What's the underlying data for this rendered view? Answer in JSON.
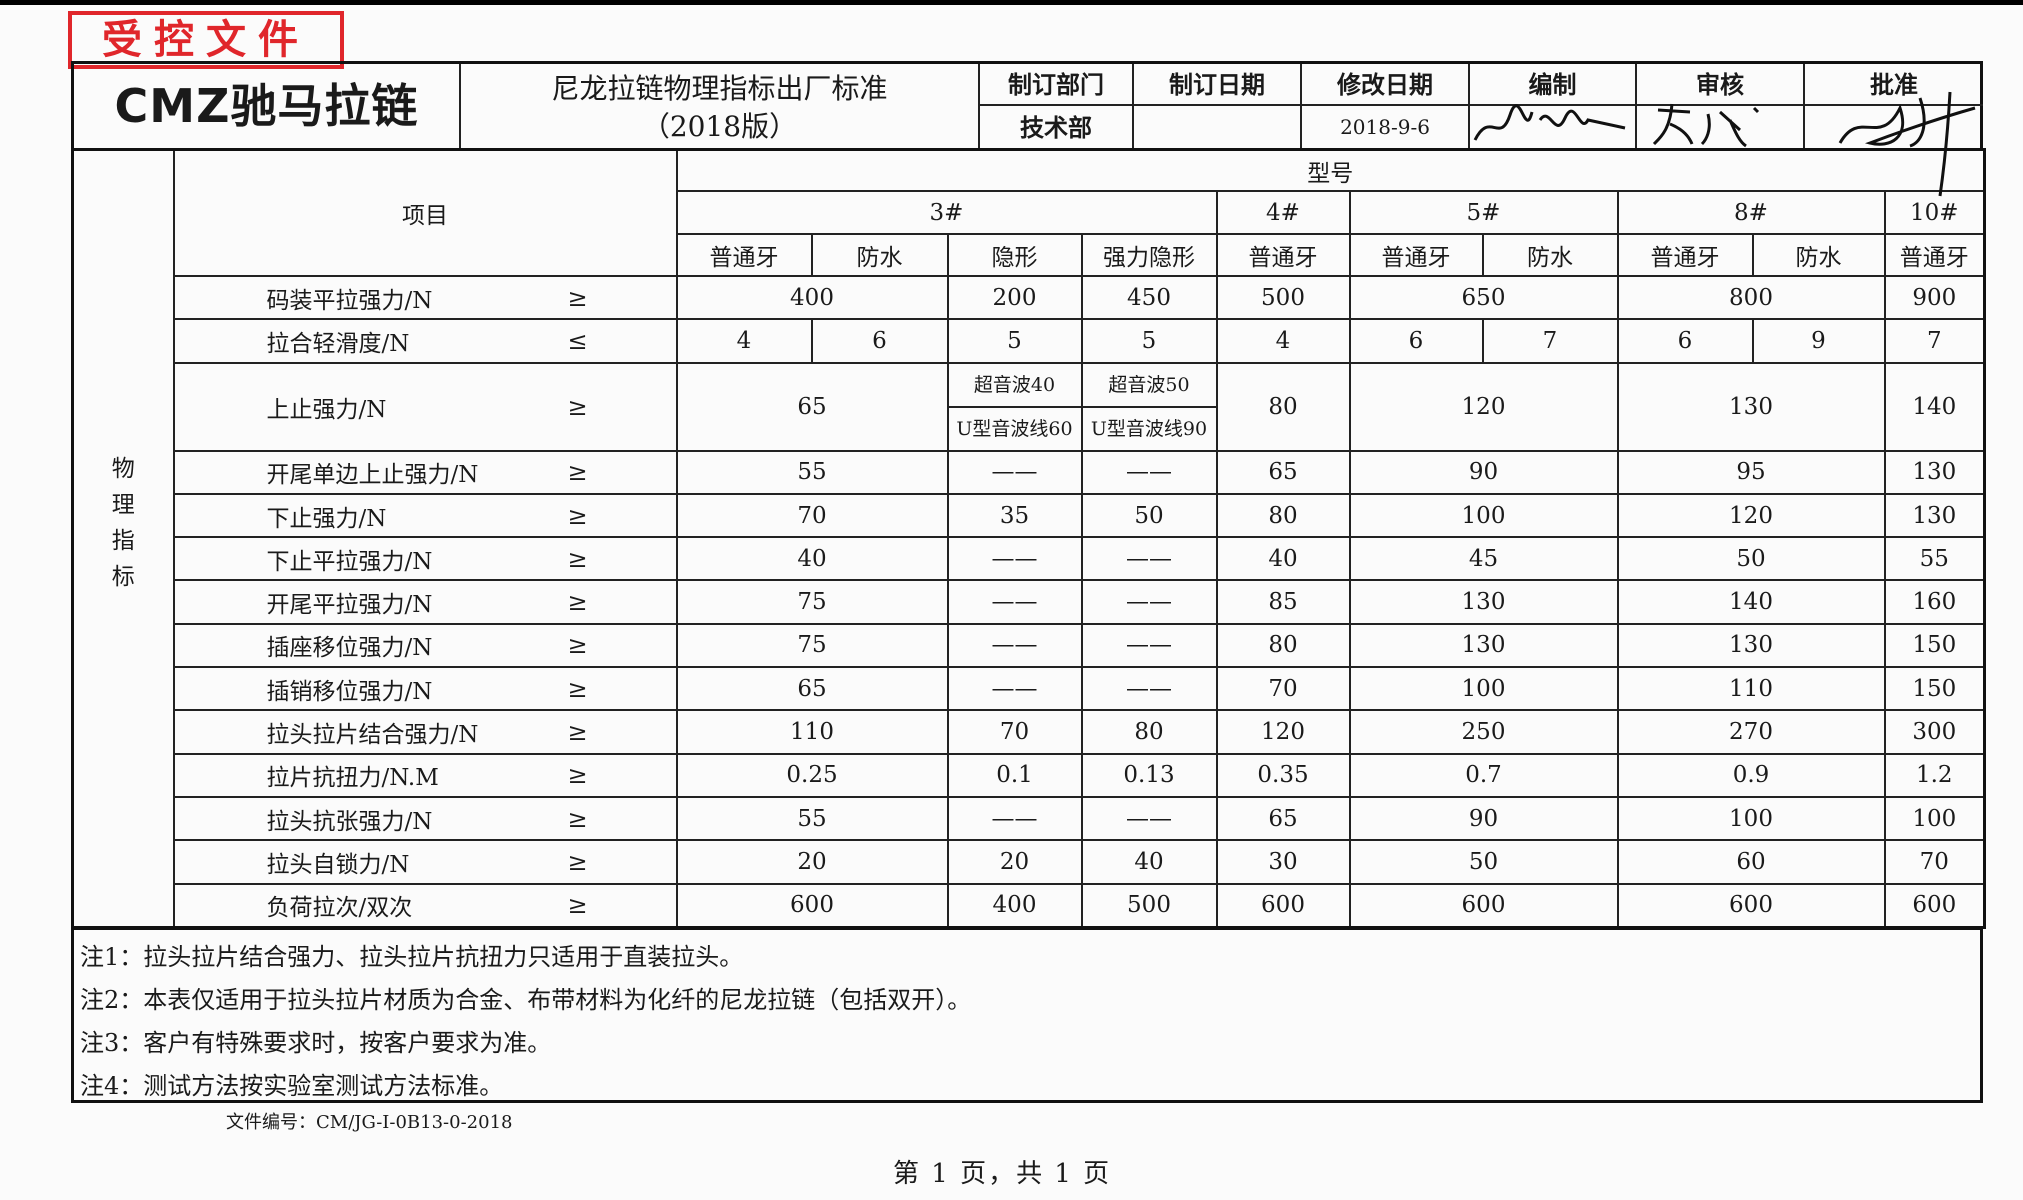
{
  "stamp": "受控文件",
  "header": {
    "logo": "CMZ驰马拉链",
    "title_line1": "尼龙拉链物理指标出厂标准",
    "title_line2": "（2018版）",
    "fields": [
      {
        "label": "制订部门",
        "value": "技术部"
      },
      {
        "label": "制订日期",
        "value": ""
      },
      {
        "label": "修改日期",
        "value": "2018-9-6"
      },
      {
        "label": "编制",
        "value": ""
      },
      {
        "label": "审核",
        "value": ""
      },
      {
        "label": "批准",
        "value": ""
      }
    ]
  },
  "table": {
    "side_label": "物理指标",
    "item_header": "项目",
    "model_header": "型号",
    "models": [
      {
        "name": "3#",
        "span": 4
      },
      {
        "name": "4#",
        "span": 1
      },
      {
        "name": "5#",
        "span": 2
      },
      {
        "name": "8#",
        "span": 2
      },
      {
        "name": "10#",
        "span": 1
      }
    ],
    "types": [
      "普通牙",
      "防水",
      "隐形",
      "强力隐形",
      "普通牙",
      "普通牙",
      "防水",
      "普通牙",
      "防水",
      "普通牙"
    ],
    "rows": [
      {
        "label": "码装平拉强力/N",
        "op": "≥",
        "cells": [
          {
            "v": "400",
            "span": 2
          },
          {
            "v": "200"
          },
          {
            "v": "450"
          },
          {
            "v": "500"
          },
          {
            "v": "650",
            "span": 2
          },
          {
            "v": "800",
            "span": 2
          },
          {
            "v": "900"
          }
        ]
      },
      {
        "label": "拉合轻滑度/N",
        "op": "≤",
        "cells": [
          {
            "v": "4"
          },
          {
            "v": "6"
          },
          {
            "v": "5"
          },
          {
            "v": "5"
          },
          {
            "v": "4"
          },
          {
            "v": "6"
          },
          {
            "v": "7"
          },
          {
            "v": "6"
          },
          {
            "v": "9"
          },
          {
            "v": "7"
          }
        ]
      },
      {
        "label": "上止强力/N",
        "op": "≥",
        "tall": true,
        "cells": [
          {
            "v": "65",
            "span": 2
          },
          {
            "split": [
              "超音波40",
              "U型音波线60"
            ]
          },
          {
            "split": [
              "超音波50",
              "U型音波线90"
            ]
          },
          {
            "v": "80"
          },
          {
            "v": "120",
            "span": 2
          },
          {
            "v": "130",
            "span": 2
          },
          {
            "v": "140"
          }
        ]
      },
      {
        "label": "开尾单边上止强力/N",
        "op": "≥",
        "cells": [
          {
            "v": "55",
            "span": 2
          },
          {
            "v": "——"
          },
          {
            "v": "——"
          },
          {
            "v": "65"
          },
          {
            "v": "90",
            "span": 2
          },
          {
            "v": "95",
            "span": 2
          },
          {
            "v": "130"
          }
        ]
      },
      {
        "label": "下止强力/N",
        "op": "≥",
        "cells": [
          {
            "v": "70",
            "span": 2
          },
          {
            "v": "35"
          },
          {
            "v": "50"
          },
          {
            "v": "80"
          },
          {
            "v": "100",
            "span": 2
          },
          {
            "v": "120",
            "span": 2
          },
          {
            "v": "130"
          }
        ]
      },
      {
        "label": "下止平拉强力/N",
        "op": "≥",
        "cells": [
          {
            "v": "40",
            "span": 2
          },
          {
            "v": "——"
          },
          {
            "v": "——"
          },
          {
            "v": "40"
          },
          {
            "v": "45",
            "span": 2
          },
          {
            "v": "50",
            "span": 2
          },
          {
            "v": "55"
          }
        ]
      },
      {
        "label": "开尾平拉强力/N",
        "op": "≥",
        "cells": [
          {
            "v": "75",
            "span": 2
          },
          {
            "v": "——"
          },
          {
            "v": "——"
          },
          {
            "v": "85"
          },
          {
            "v": "130",
            "span": 2
          },
          {
            "v": "140",
            "span": 2
          },
          {
            "v": "160"
          }
        ]
      },
      {
        "label": "插座移位强力/N",
        "op": "≥",
        "cells": [
          {
            "v": "75",
            "span": 2
          },
          {
            "v": "——"
          },
          {
            "v": "——"
          },
          {
            "v": "80"
          },
          {
            "v": "130",
            "span": 2
          },
          {
            "v": "130",
            "span": 2
          },
          {
            "v": "150"
          }
        ]
      },
      {
        "label": "插销移位强力/N",
        "op": "≥",
        "cells": [
          {
            "v": "65",
            "span": 2
          },
          {
            "v": "——"
          },
          {
            "v": "——"
          },
          {
            "v": "70"
          },
          {
            "v": "100",
            "span": 2
          },
          {
            "v": "110",
            "span": 2
          },
          {
            "v": "150"
          }
        ]
      },
      {
        "label": "拉头拉片结合强力/N",
        "op": "≥",
        "cells": [
          {
            "v": "110",
            "span": 2
          },
          {
            "v": "70"
          },
          {
            "v": "80"
          },
          {
            "v": "120"
          },
          {
            "v": "250",
            "span": 2
          },
          {
            "v": "270",
            "span": 2
          },
          {
            "v": "300"
          }
        ]
      },
      {
        "label": "拉片抗扭力/N.M",
        "op": "≥",
        "cells": [
          {
            "v": "0.25",
            "span": 2
          },
          {
            "v": "0.1"
          },
          {
            "v": "0.13"
          },
          {
            "v": "0.35"
          },
          {
            "v": "0.7",
            "span": 2
          },
          {
            "v": "0.9",
            "span": 2
          },
          {
            "v": "1.2"
          }
        ]
      },
      {
        "label": "拉头抗张强力/N",
        "op": "≥",
        "cells": [
          {
            "v": "55",
            "span": 2
          },
          {
            "v": "——"
          },
          {
            "v": "——"
          },
          {
            "v": "65"
          },
          {
            "v": "90",
            "span": 2
          },
          {
            "v": "100",
            "span": 2
          },
          {
            "v": "100"
          }
        ]
      },
      {
        "label": "拉头自锁力/N",
        "op": "≥",
        "cells": [
          {
            "v": "20",
            "span": 2
          },
          {
            "v": "20"
          },
          {
            "v": "40"
          },
          {
            "v": "30"
          },
          {
            "v": "50",
            "span": 2
          },
          {
            "v": "60",
            "span": 2
          },
          {
            "v": "70"
          }
        ]
      },
      {
        "label": "负荷拉次/双次",
        "op": "≥",
        "cells": [
          {
            "v": "600",
            "span": 2
          },
          {
            "v": "400"
          },
          {
            "v": "500"
          },
          {
            "v": "600"
          },
          {
            "v": "600",
            "span": 2
          },
          {
            "v": "600",
            "span": 2
          },
          {
            "v": "600"
          }
        ]
      }
    ]
  },
  "notes": [
    "注1：拉头拉片结合强力、拉头拉片抗扭力只适用于直装拉头。",
    "注2：本表仅适用于拉头拉片材质为合金、布带材料为化纤的尼龙拉链（包括双开）。",
    "注3：客户有特殊要求时，按客户要求为准。",
    "注4：测试方法按实验室测试方法标准。"
  ],
  "file_number": "文件编号：CM/JG-I-0B13-0-2018",
  "page_number": "第 1 页，共 1 页",
  "colors": {
    "stamp": "#e0262b",
    "ink": "#1a1a1a"
  }
}
